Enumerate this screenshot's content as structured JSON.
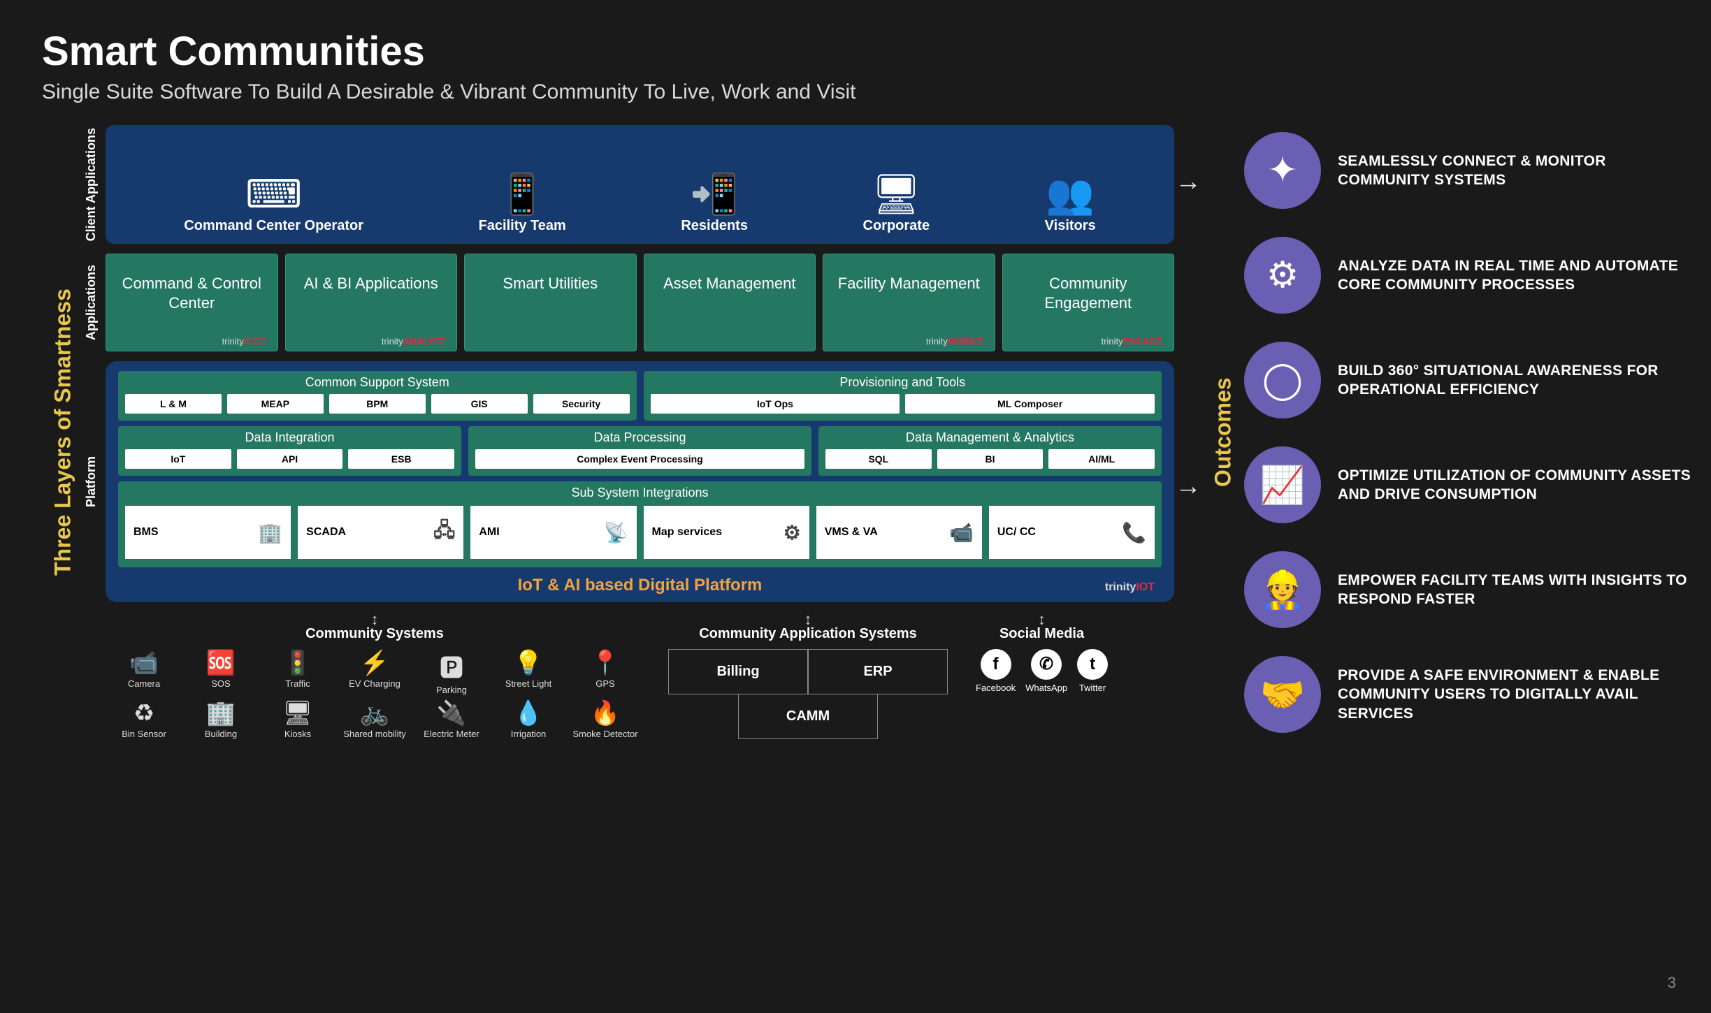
{
  "type": "infographic",
  "page_number": "3",
  "title": "Smart Communities",
  "subtitle": "Single Suite Software To Build A Desirable & Vibrant Community To Live, Work and Visit",
  "left_axis_label": "Three Layers of Smartness",
  "right_axis_label": "Outcomes",
  "colors": {
    "background": "#1a1a1a",
    "navy_block": "#173a6e",
    "teal_block": "#247760",
    "accent_yellow": "#e8c84a",
    "accent_orange": "#f1a33c",
    "outcome_circle": "#6a5fb3",
    "brand_red": "#e22434"
  },
  "layers": {
    "client": {
      "label": "Client Applications",
      "items": [
        {
          "icon": "⌨",
          "label": "Command Center Operator"
        },
        {
          "icon": "📱",
          "label": "Facility Team"
        },
        {
          "icon": "📲",
          "label": "Residents"
        },
        {
          "icon": "🖥",
          "label": "Corporate"
        },
        {
          "icon": "👥",
          "label": "Visitors"
        }
      ]
    },
    "applications": {
      "label": "Applications",
      "items": [
        {
          "title": "Command & Control Center",
          "brand": "trinityICCC"
        },
        {
          "title": "AI & BI Applications",
          "brand": "trinityANALYST"
        },
        {
          "title": "Smart Utilities",
          "brand": ""
        },
        {
          "title": "Asset Management",
          "brand": ""
        },
        {
          "title": "Facility Management",
          "brand": "trinityMOBILE"
        },
        {
          "title": "Community Engagement",
          "brand": "trinityENGAGE"
        }
      ]
    },
    "platform": {
      "label": "Platform",
      "footer": "IoT & AI based Digital Platform",
      "brand": "trinityIOT",
      "groups_row1": [
        {
          "title": "Common Support System",
          "chips": [
            "L & M",
            "MEAP",
            "BPM",
            "GIS",
            "Security"
          ]
        },
        {
          "title": "Provisioning and Tools",
          "chips": [
            "IoT Ops",
            "ML Composer"
          ]
        }
      ],
      "groups_row2": [
        {
          "title": "Data Integration",
          "chips": [
            "IoT",
            "API",
            "ESB"
          ]
        },
        {
          "title": "Data Processing",
          "chips": [
            "Complex Event Processing"
          ]
        },
        {
          "title": "Data Management & Analytics",
          "chips": [
            "SQL",
            "BI",
            "AI/ML"
          ]
        }
      ],
      "subsystems": {
        "title": "Sub System Integrations",
        "items": [
          {
            "label": "BMS",
            "icon": "🏢"
          },
          {
            "label": "SCADA",
            "icon": "🖧"
          },
          {
            "label": "AMI",
            "icon": "📡"
          },
          {
            "label": "Map services",
            "icon": "⚙"
          },
          {
            "label": "VMS & VA",
            "icon": "📹"
          },
          {
            "label": "UC/ CC",
            "icon": "📞"
          }
        ]
      }
    }
  },
  "community_systems": {
    "title": "Community  Systems",
    "items": [
      {
        "icon": "📹",
        "label": "Camera"
      },
      {
        "icon": "🆘",
        "label": "SOS"
      },
      {
        "icon": "🚦",
        "label": "Traffic"
      },
      {
        "icon": "⚡",
        "label": "EV Charging"
      },
      {
        "icon": "🅿",
        "label": "Parking"
      },
      {
        "icon": "💡",
        "label": "Street Light"
      },
      {
        "icon": "📍",
        "label": "GPS"
      },
      {
        "icon": "♻",
        "label": "Bin Sensor"
      },
      {
        "icon": "🏢",
        "label": "Building"
      },
      {
        "icon": "🖥",
        "label": "Kiosks"
      },
      {
        "icon": "🚲",
        "label": "Shared mobility"
      },
      {
        "icon": "🔌",
        "label": "Electric Meter"
      },
      {
        "icon": "💧",
        "label": "Irrigation"
      },
      {
        "icon": "🔥",
        "label": "Smoke Detector"
      }
    ]
  },
  "community_app_systems": {
    "title": "Community Application Systems",
    "items": [
      "Billing",
      "ERP",
      "CAMM"
    ]
  },
  "social_media": {
    "title": "Social Media",
    "items": [
      {
        "glyph": "f",
        "label": "Facebook"
      },
      {
        "glyph": "✆",
        "label": "WhatsApp"
      },
      {
        "glyph": "t",
        "label": "Twitter"
      }
    ]
  },
  "outcomes": [
    {
      "icon": "✦",
      "text": "SEAMLESSLY CONNECT & MONITOR COMMUNITY SYSTEMS"
    },
    {
      "icon": "⚙",
      "text": "ANALYZE DATA IN REAL TIME AND AUTOMATE CORE COMMUNITY PROCESSES"
    },
    {
      "icon": "◯",
      "text": "BUILD 360° SITUATIONAL AWARENESS FOR OPERATIONAL EFFICIENCY"
    },
    {
      "icon": "📈",
      "text": "OPTIMIZE UTILIZATION OF COMMUNITY ASSETS AND DRIVE CONSUMPTION"
    },
    {
      "icon": "👷",
      "text": "EMPOWER FACILITY TEAMS WITH INSIGHTS TO RESPOND FASTER"
    },
    {
      "icon": "🤝",
      "text": "PROVIDE A SAFE ENVIRONMENT & ENABLE COMMUNITY USERS TO DIGITALLY AVAIL SERVICES"
    }
  ]
}
